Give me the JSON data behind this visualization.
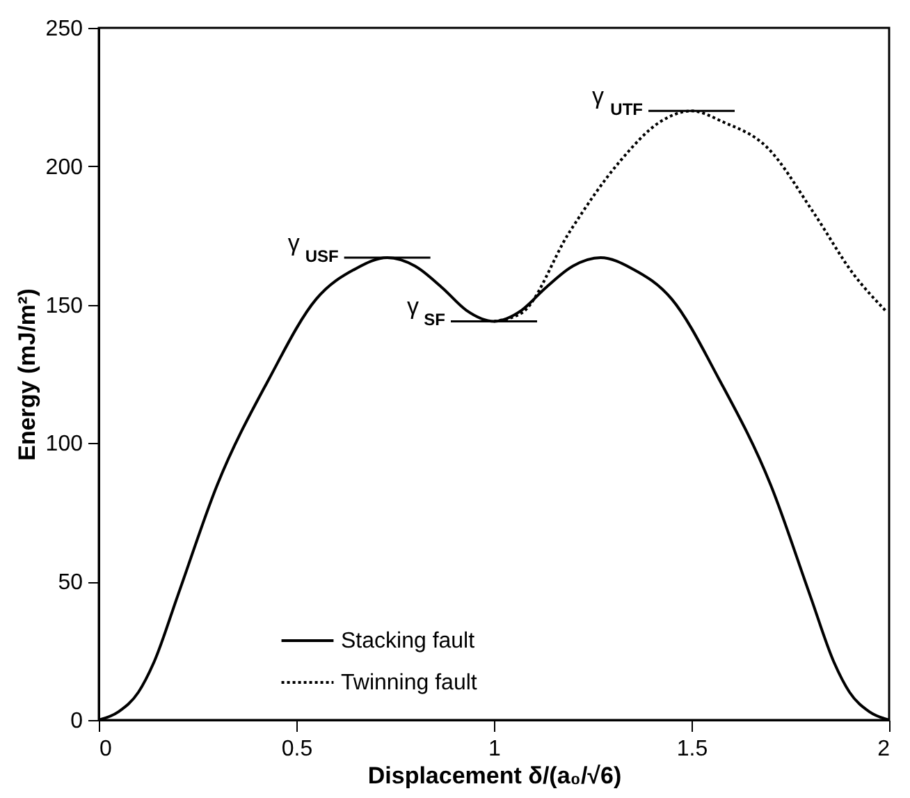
{
  "chart_data": {
    "type": "line",
    "xlabel": "Displacement δ/(a₀/√6)",
    "ylabel": "Energy (mJ/m²)",
    "xlim": [
      0,
      2
    ],
    "ylim": [
      0,
      250
    ],
    "xticks": [
      0,
      0.5,
      1,
      1.5,
      2
    ],
    "yticks": [
      0,
      50,
      100,
      150,
      200,
      250
    ],
    "grid": false,
    "legend": "bottom",
    "marker": "none",
    "series": [
      {
        "name": "Stacking fault",
        "color": "#000000",
        "line_style": "solid",
        "x": [
          0,
          0.05,
          0.1,
          0.14,
          0.2,
          0.3,
          0.43,
          0.55,
          0.65,
          0.73,
          0.8,
          0.87,
          0.93,
          1.0,
          1.07,
          1.13,
          1.2,
          1.27,
          1.35,
          1.45,
          1.57,
          1.7,
          1.8,
          1.86,
          1.9,
          1.95,
          2.0
        ],
        "values": [
          0,
          3,
          10,
          21,
          45,
          85,
          123,
          152,
          163,
          167,
          164,
          156,
          148,
          144,
          148,
          156,
          164,
          167,
          163,
          152,
          123,
          85,
          45,
          21,
          10,
          3,
          0
        ]
      },
      {
        "name": "Twinning fault",
        "color": "#000000",
        "line_style": "dotted",
        "x": [
          1.0,
          1.07,
          1.19,
          1.32,
          1.42,
          1.5,
          1.58,
          1.69,
          1.81,
          1.91,
          1.99
        ],
        "values": [
          144,
          147,
          176,
          202,
          216,
          220,
          216,
          207,
          183,
          161,
          148
        ]
      }
    ],
    "annotations": [
      {
        "text": "γ$_{USF}$",
        "x": 0.73,
        "y": 167
      },
      {
        "text": "γ$_{SF}$",
        "x": 1.0,
        "y": 144
      },
      {
        "text": "γ$_{UTF}$",
        "x": 1.5,
        "y": 220
      }
    ]
  }
}
